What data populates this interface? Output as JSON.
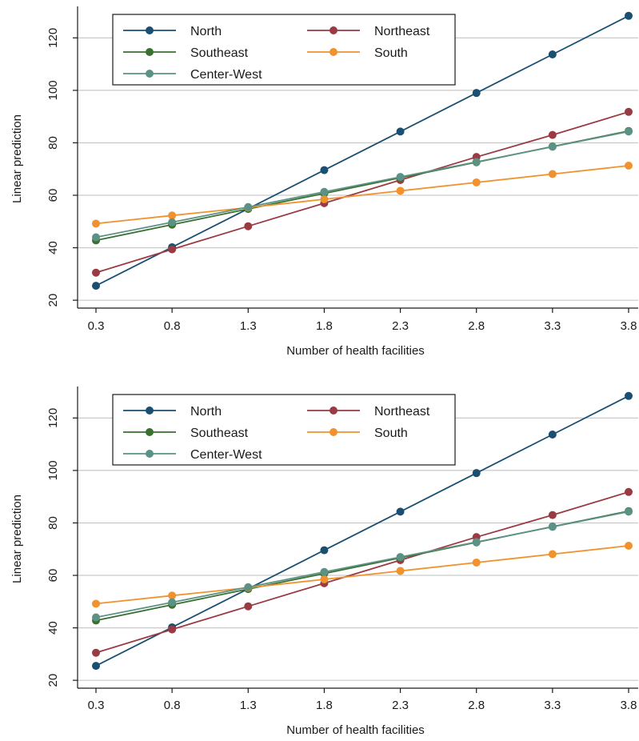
{
  "chart_data": [
    {
      "type": "line",
      "title": "",
      "xlabel": "Number of health facilities",
      "ylabel": "Linear prediction",
      "x": [
        0.3,
        0.8,
        1.3,
        1.8,
        2.3,
        2.8,
        3.3,
        3.8
      ],
      "x_tick_labels": [
        "0.3",
        "0.8",
        "1.3",
        "1.8",
        "2.3",
        "2.8",
        "3.3",
        "3.8"
      ],
      "y_ticks": [
        20,
        40,
        60,
        80,
        100,
        120
      ],
      "y_tick_labels": [
        "20",
        "40",
        "60",
        "80",
        "100",
        "120"
      ],
      "ylim": [
        17,
        132
      ],
      "grid": "horizontal",
      "legend_placement": "top-left (inside plot)",
      "series": [
        {
          "name": "North",
          "color": "#1a4f72",
          "values": [
            25.5,
            40.2,
            54.9,
            69.6,
            84.3,
            99.0,
            113.7,
            128.4
          ]
        },
        {
          "name": "Northeast",
          "color": "#9a3a43",
          "values": [
            30.5,
            39.4,
            48.2,
            57.0,
            65.8,
            74.6,
            83.0,
            91.8
          ]
        },
        {
          "name": "Southeast",
          "color": "#3a7030",
          "values": [
            42.8,
            48.8,
            54.8,
            60.7,
            66.7,
            72.6,
            78.6,
            84.5
          ]
        },
        {
          "name": "South",
          "color": "#f0922d",
          "values": [
            49.2,
            52.3,
            55.3,
            58.5,
            61.7,
            64.9,
            68.1,
            71.3
          ]
        },
        {
          "name": "Center-West",
          "color": "#5c9286",
          "values": [
            44.0,
            49.7,
            55.5,
            61.3,
            67.0,
            72.7,
            78.5,
            84.3
          ]
        }
      ]
    },
    {
      "type": "line",
      "title": "",
      "xlabel": "Number of health facilities",
      "ylabel": "Linear prediction",
      "x": [
        0.3,
        0.8,
        1.3,
        1.8,
        2.3,
        2.8,
        3.3,
        3.8
      ],
      "x_tick_labels": [
        "0.3",
        "0.8",
        "1.3",
        "1.8",
        "2.3",
        "2.8",
        "3.3",
        "3.8"
      ],
      "y_ticks": [
        20,
        40,
        60,
        80,
        100,
        120
      ],
      "y_tick_labels": [
        "20",
        "40",
        "60",
        "80",
        "100",
        "120"
      ],
      "ylim": [
        17,
        132
      ],
      "grid": "horizontal",
      "legend_placement": "top-left (inside plot)",
      "series": [
        {
          "name": "North",
          "color": "#1a4f72",
          "values": [
            25.5,
            40.2,
            54.9,
            69.6,
            84.3,
            99.0,
            113.7,
            128.4
          ]
        },
        {
          "name": "Northeast",
          "color": "#9a3a43",
          "values": [
            30.5,
            39.4,
            48.2,
            57.0,
            65.8,
            74.6,
            83.0,
            91.8
          ]
        },
        {
          "name": "Southeast",
          "color": "#3a7030",
          "values": [
            42.8,
            48.8,
            54.8,
            60.7,
            66.7,
            72.6,
            78.6,
            84.5
          ]
        },
        {
          "name": "South",
          "color": "#f0922d",
          "values": [
            49.2,
            52.3,
            55.3,
            58.5,
            61.7,
            64.9,
            68.1,
            71.3
          ]
        },
        {
          "name": "Center-West",
          "color": "#5c9286",
          "values": [
            44.0,
            49.7,
            55.5,
            61.3,
            67.0,
            72.7,
            78.5,
            84.3
          ]
        }
      ]
    }
  ]
}
